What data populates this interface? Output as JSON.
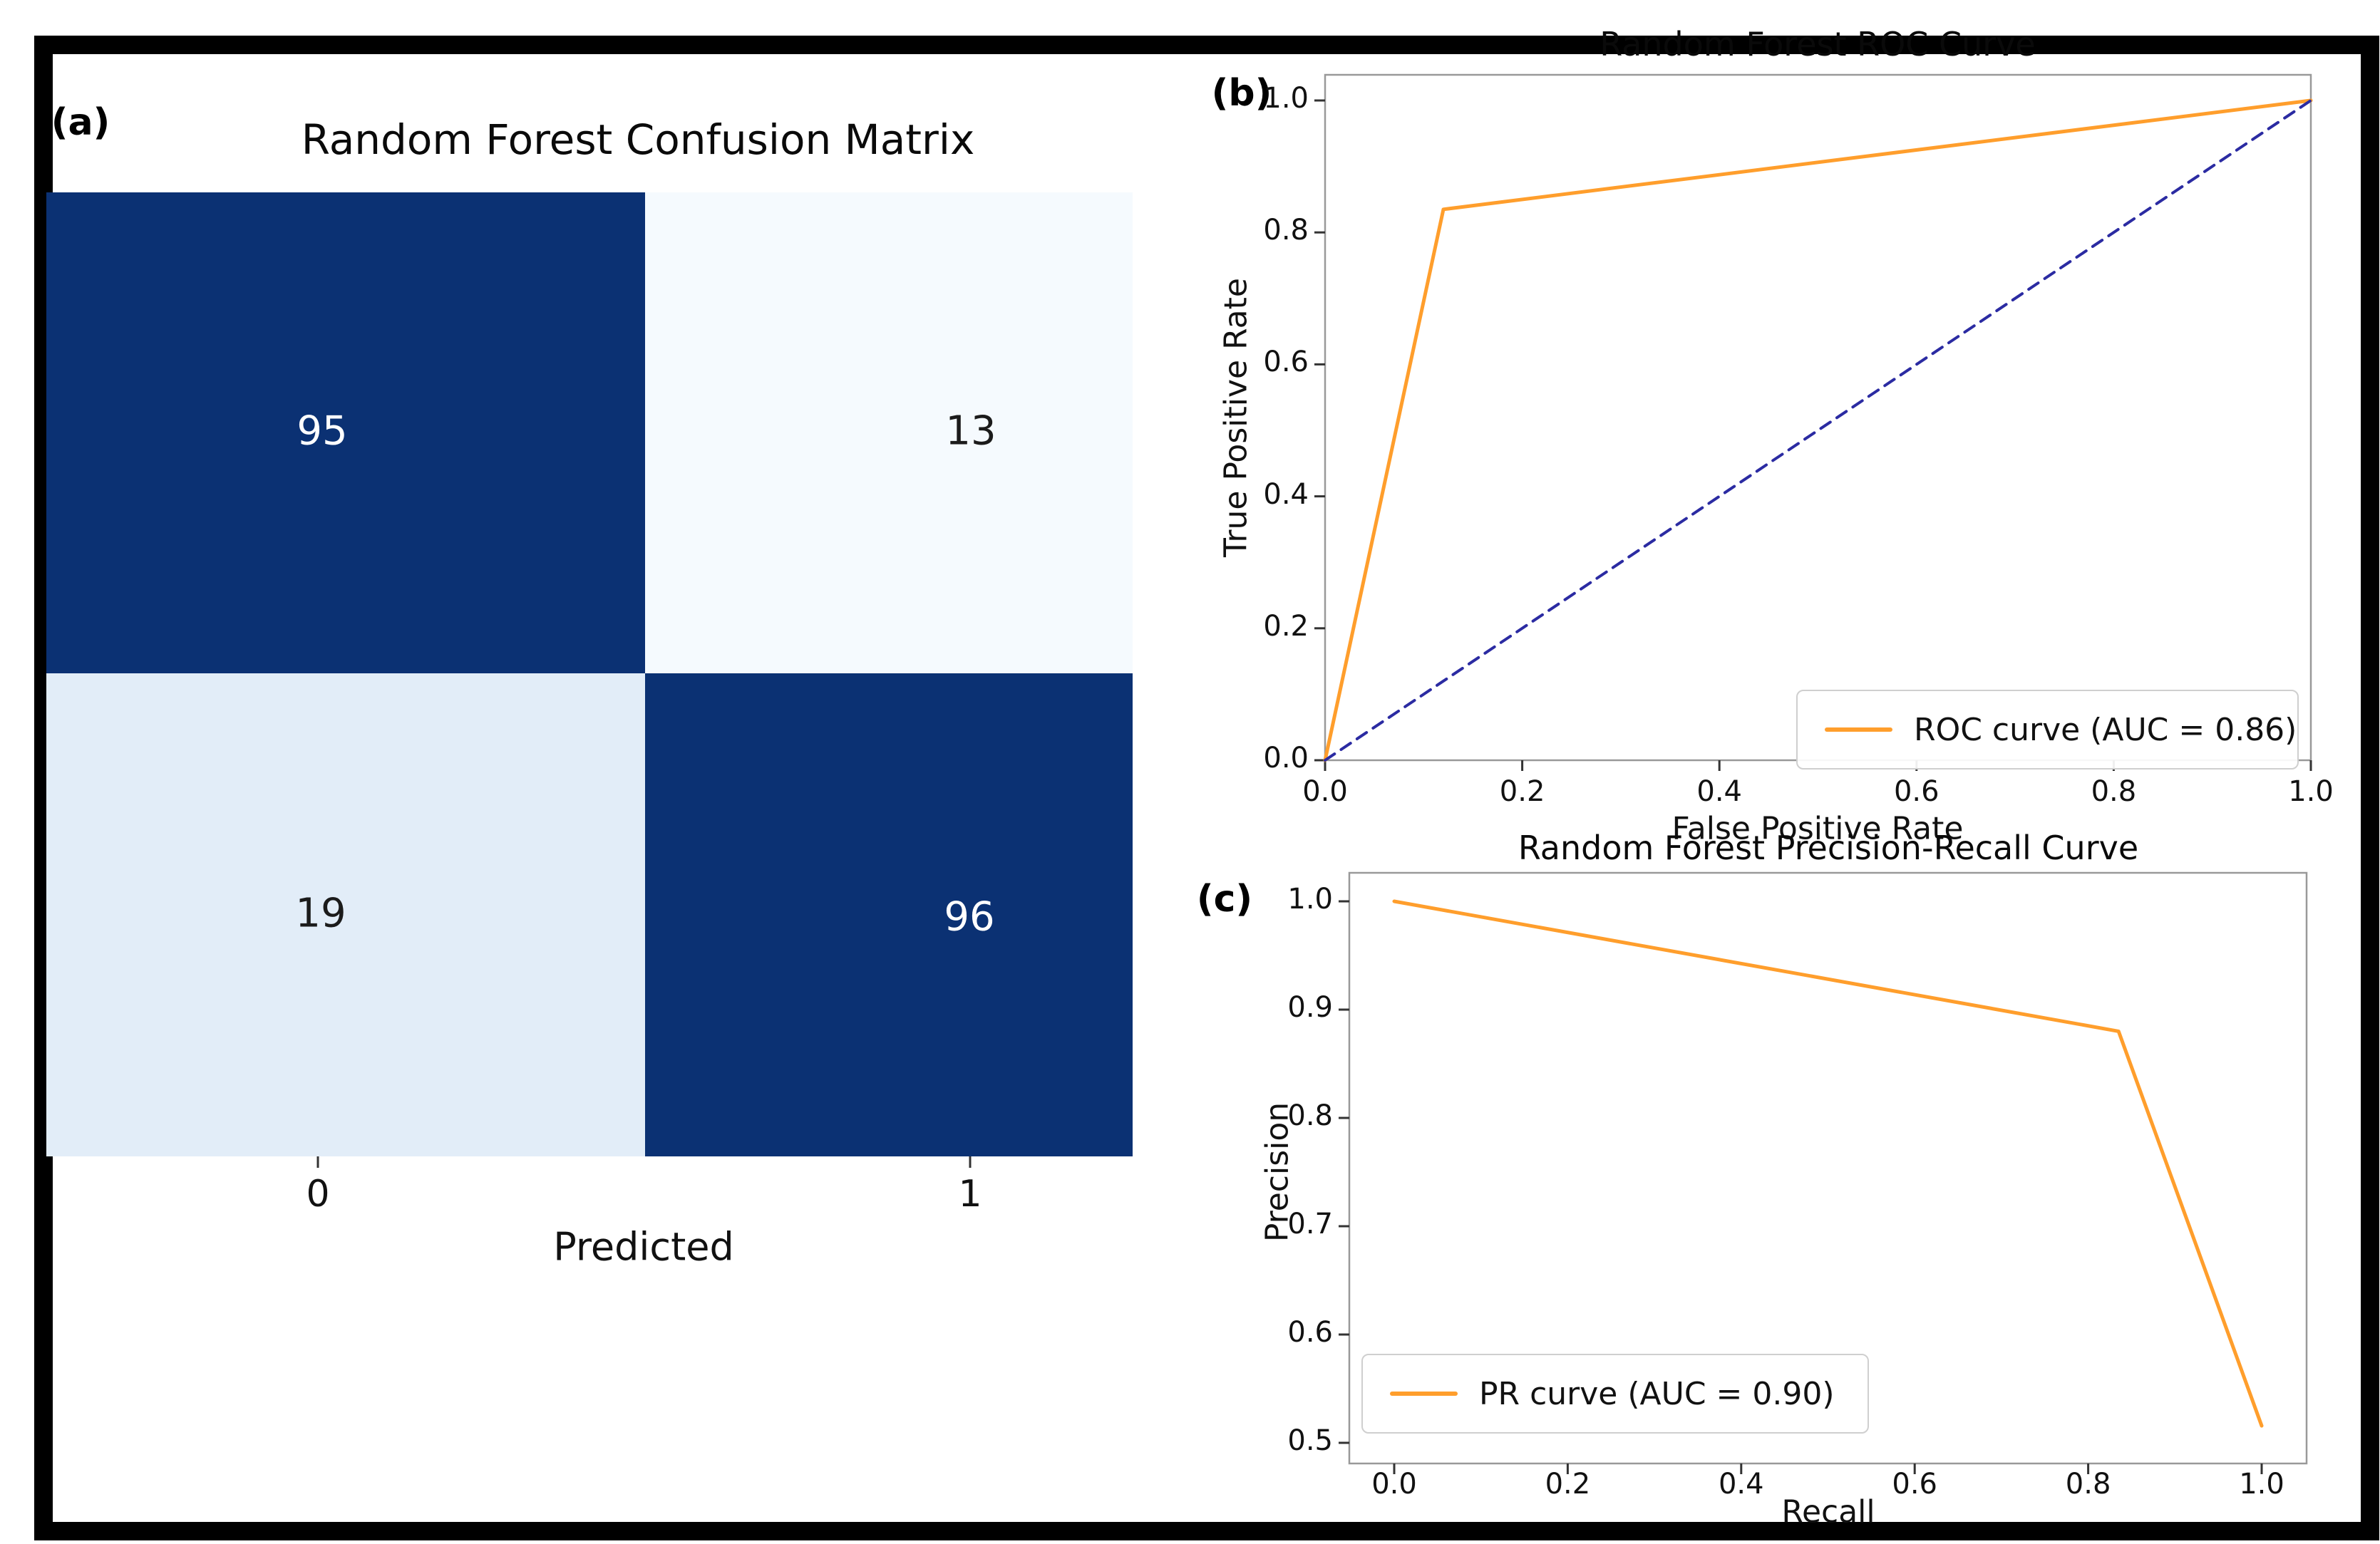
{
  "panel_labels": {
    "a": "(a)",
    "b": "(b)",
    "c": "(c)"
  },
  "colors": {
    "heatmap_dark": "#0B3173",
    "heatmap_light_top_right": "#F5FAFE",
    "heatmap_light_bottom_left": "#E2EDF8",
    "curve_orange": "#FF9E2C",
    "chance_navy": "#2B2BA2",
    "spine_gray": "#999999",
    "tick_mark": "#333333",
    "figure_border": "#000000"
  },
  "chart_data": [
    {
      "id": "confusion-matrix",
      "type": "heatmap",
      "panel": "a",
      "title": "Random Forest Confusion Matrix",
      "xlabel": "Predicted",
      "x_tick_labels": [
        "0",
        "1"
      ],
      "values": [
        [
          95,
          13
        ],
        [
          19,
          96
        ]
      ],
      "cell_colors": [
        [
          "#0B3173",
          "#F5FAFE"
        ],
        [
          "#E2EDF8",
          "#0B3173"
        ]
      ],
      "text_colors": [
        [
          "#FFFFFF",
          "#1B1B1B"
        ],
        [
          "#1B1B1B",
          "#FFFFFF"
        ]
      ]
    },
    {
      "id": "roc-curve",
      "type": "line",
      "panel": "b",
      "title": "Random Forest ROC Curve",
      "xlabel": "False Positive Rate",
      "ylabel": "True Positive Rate",
      "x_ticks": [
        "0.0",
        "0.2",
        "0.4",
        "0.6",
        "0.8",
        "1.0"
      ],
      "y_ticks": [
        "1.0",
        "0.8",
        "0.6",
        "0.4",
        "0.2",
        "0.0"
      ],
      "xlim": [
        0.0,
        1.0
      ],
      "ylim": [
        0.0,
        1.04
      ],
      "grid": false,
      "legend": {
        "label": "ROC curve (AUC = 0.86)",
        "position": "lower right"
      },
      "auc": 0.86,
      "series": [
        {
          "name": "ROC curve (AUC = 0.86)",
          "color": "#FF9E2C",
          "style": "solid",
          "width": 5,
          "points": [
            [
              0.0,
              0.0
            ],
            [
              0.12,
              0.835
            ],
            [
              1.0,
              1.0
            ]
          ]
        },
        {
          "name": "chance-diagonal",
          "color": "#2B2BA2",
          "style": "dashed",
          "width": 4,
          "points": [
            [
              0.0,
              0.0
            ],
            [
              1.0,
              1.0
            ]
          ]
        }
      ]
    },
    {
      "id": "precision-recall-curve",
      "type": "line",
      "panel": "c",
      "title": "Random Forest Precision-Recall Curve",
      "xlabel": "Recall",
      "ylabel": "Precision",
      "x_ticks": [
        "0.0",
        "0.2",
        "0.4",
        "0.6",
        "0.8",
        "1.0"
      ],
      "y_ticks": [
        "1.0",
        "0.9",
        "0.8",
        "0.7",
        "0.6",
        "0.5"
      ],
      "xlim": [
        -0.05,
        1.05
      ],
      "ylim": [
        0.49,
        1.025
      ],
      "grid": false,
      "legend": {
        "label": "PR curve (AUC = 0.90)",
        "position": "lower left"
      },
      "auc": 0.9,
      "series": [
        {
          "name": "PR curve (AUC = 0.90)",
          "color": "#FF9E2C",
          "style": "solid",
          "width": 5,
          "points": [
            [
              0.0,
              1.0
            ],
            [
              0.835,
              0.88
            ],
            [
              1.0,
              0.5157
            ]
          ]
        }
      ]
    }
  ]
}
